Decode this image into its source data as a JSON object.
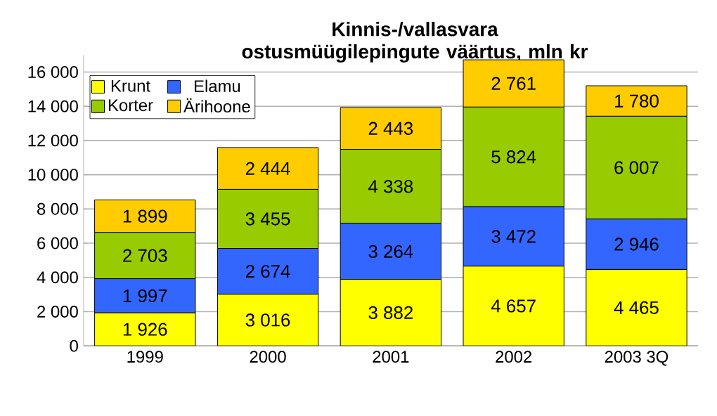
{
  "chart_data": {
    "type": "bar",
    "stacked": true,
    "title": "Kinnis-/vallasvara ostusmüügilepingute väärtus, mln kr",
    "categories": [
      "1999",
      "2000",
      "2001",
      "2002",
      "2003 3Q"
    ],
    "series": [
      {
        "name": "Krunt",
        "color": "#ffff00",
        "values": [
          1926,
          3016,
          3882,
          4657,
          4465
        ],
        "value_labels": [
          "1 926",
          "3 016",
          "3 882",
          "4 657",
          "4 465"
        ]
      },
      {
        "name": "Elamu",
        "color": "#3366ff",
        "values": [
          1997,
          2674,
          3264,
          3472,
          2946
        ],
        "value_labels": [
          "1 997",
          "2 674",
          "3 264",
          "3 472",
          "2 946"
        ]
      },
      {
        "name": "Korter",
        "color": "#99cc00",
        "values": [
          2703,
          3455,
          4338,
          5824,
          6007
        ],
        "value_labels": [
          "2 703",
          "3 455",
          "4 338",
          "5 824",
          "6 007"
        ]
      },
      {
        "name": "Ärihoone",
        "color": "#ffcc00",
        "values": [
          1899,
          2444,
          2443,
          2761,
          1780
        ],
        "value_labels": [
          "1 899",
          "2 444",
          "2 443",
          "2 761",
          "1 780"
        ]
      }
    ],
    "ylim": [
      0,
      17000
    ],
    "yticks": [
      {
        "value": 0,
        "label": "0"
      },
      {
        "value": 2000,
        "label": "2 000"
      },
      {
        "value": 4000,
        "label": "4 000"
      },
      {
        "value": 6000,
        "label": "6 000"
      },
      {
        "value": 8000,
        "label": "8 000"
      },
      {
        "value": 10000,
        "label": "10 000"
      },
      {
        "value": 12000,
        "label": "12 000"
      },
      {
        "value": 14000,
        "label": "14 000"
      },
      {
        "value": 16000,
        "label": "16 000"
      }
    ],
    "grid": "y",
    "legend": "top left"
  }
}
